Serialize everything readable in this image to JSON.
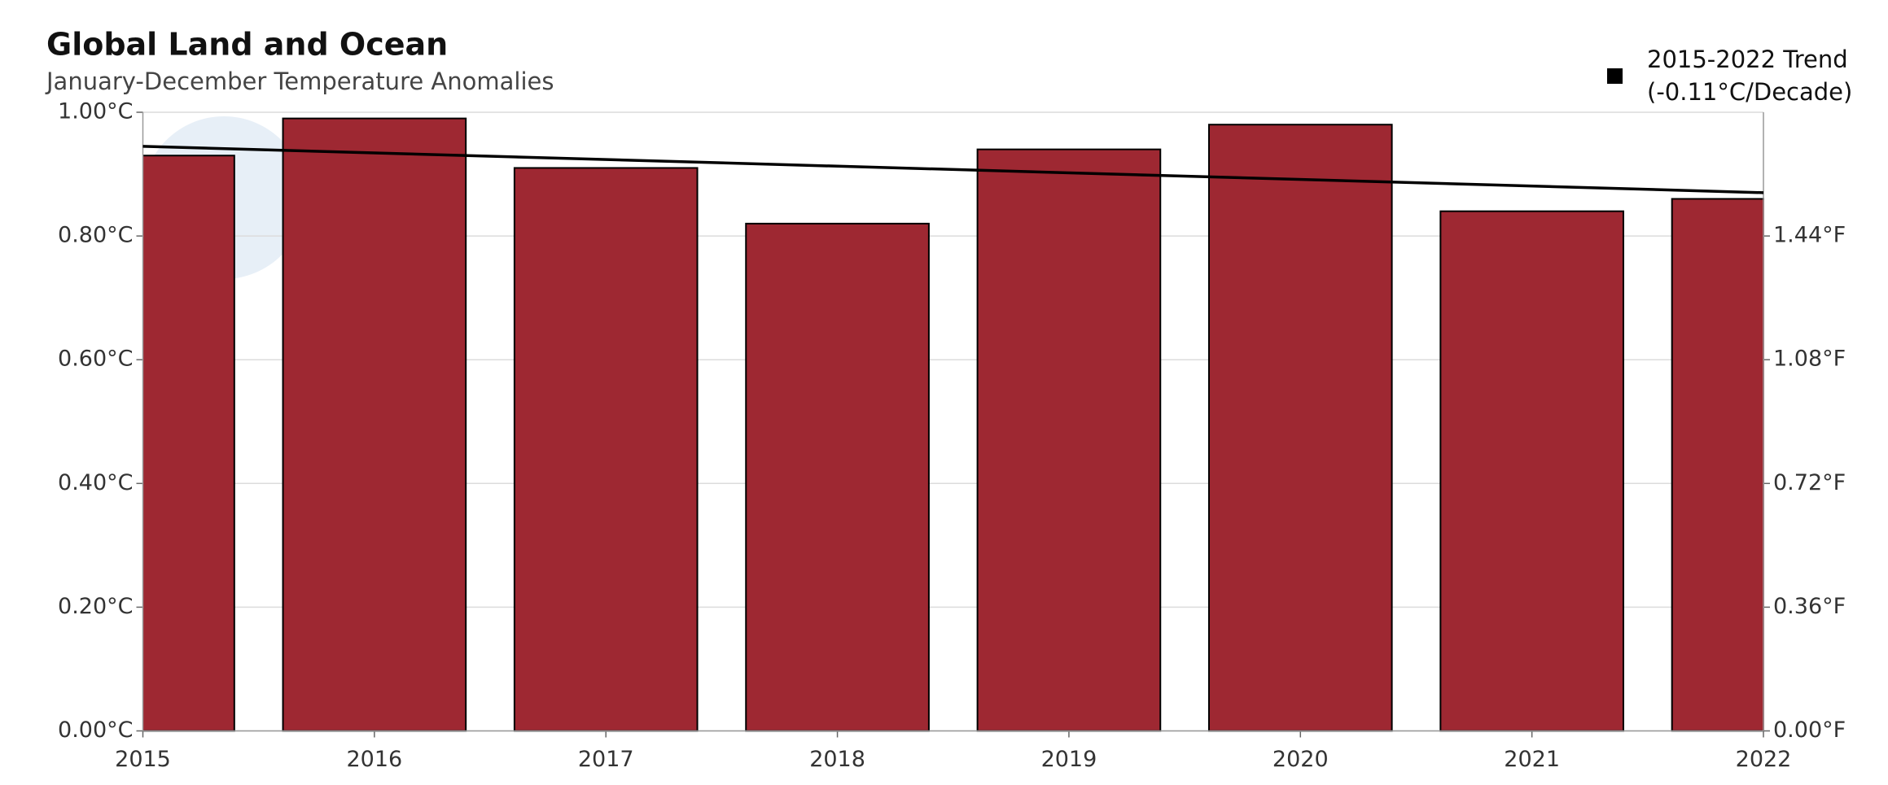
{
  "chart_data": {
    "type": "bar",
    "title": "Global Land and Ocean",
    "subtitle": "January-December Temperature Anomalies",
    "x": [
      2015,
      2016,
      2017,
      2018,
      2019,
      2020,
      2021,
      2022
    ],
    "values": [
      0.93,
      0.99,
      0.91,
      0.82,
      0.94,
      0.98,
      0.84,
      0.86
    ],
    "color": "#9e2832",
    "xlim": [
      2015,
      2022
    ],
    "xticks": [
      2015,
      2016,
      2017,
      2018,
      2019,
      2020,
      2021,
      2022
    ],
    "ylim": [
      0,
      1
    ],
    "yticks": [
      {
        "value": 0,
        "label": "0.00°C"
      },
      {
        "value": 0.2,
        "label": "0.20°C"
      },
      {
        "value": 0.4,
        "label": "0.40°C"
      },
      {
        "value": 0.6,
        "label": "0.60°C"
      },
      {
        "value": 0.8,
        "label": "0.80°C"
      },
      {
        "value": 1,
        "label": "1.00°C"
      }
    ],
    "y2lim": [
      0,
      1.8
    ],
    "y2ticks": [
      {
        "value": 0,
        "label": "0.00°F"
      },
      {
        "value": 0.36,
        "label": "0.36°F"
      },
      {
        "value": 0.72,
        "label": "0.72°F"
      },
      {
        "value": 1.08,
        "label": "1.08°F"
      },
      {
        "value": 1.44,
        "label": "1.44°F"
      }
    ],
    "grid": true,
    "trend": {
      "type": "line",
      "name": "2015-2022 Trend",
      "note": "(-0.11°C/Decade)",
      "x": [
        2015,
        2022
      ],
      "values": [
        0.945,
        0.87
      ],
      "color": "#000000"
    }
  }
}
